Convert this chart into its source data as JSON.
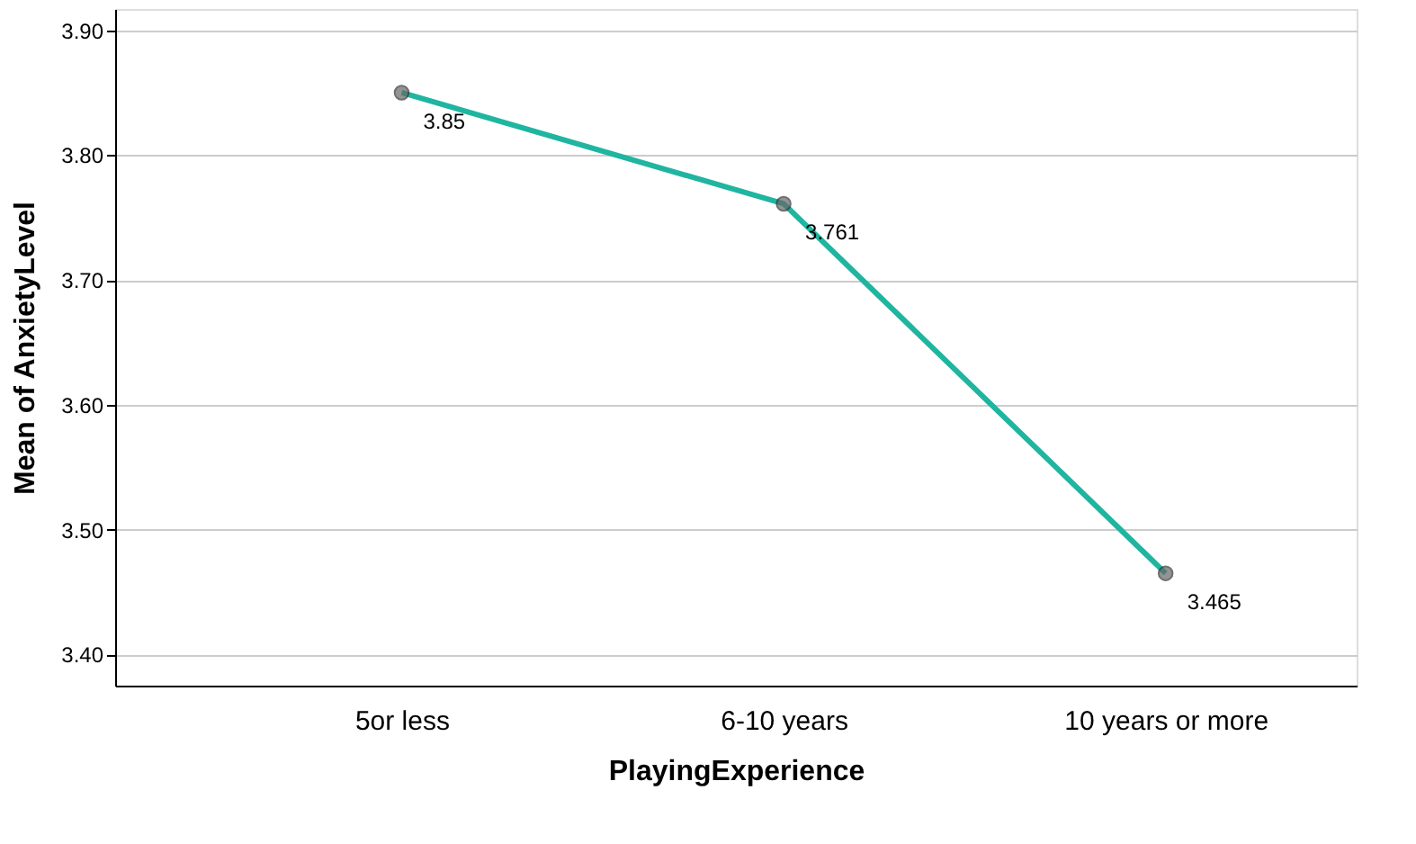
{
  "chart_data": {
    "type": "line",
    "xlabel": "PlayingExperience",
    "ylabel": "Mean of AnxietyLevel",
    "categories": [
      "5or less",
      "6-10 years",
      "10 years or more"
    ],
    "series": [
      {
        "color": "#1fb5a0",
        "values": [
          3.85,
          3.761,
          3.465
        ]
      }
    ],
    "ylim": [
      3.375,
      3.917
    ],
    "yticks": [
      {
        "value": 3.4,
        "label": "3.40"
      },
      {
        "value": 3.5,
        "label": "3.50"
      },
      {
        "value": 3.6,
        "label": "3.60"
      },
      {
        "value": 3.7,
        "label": "3.70"
      },
      {
        "value": 3.8,
        "label": "3.80"
      },
      {
        "value": 3.9,
        "label": "3.90"
      }
    ],
    "grid": "y",
    "marker": "circle",
    "line_style": "solid",
    "data_labels": true
  }
}
